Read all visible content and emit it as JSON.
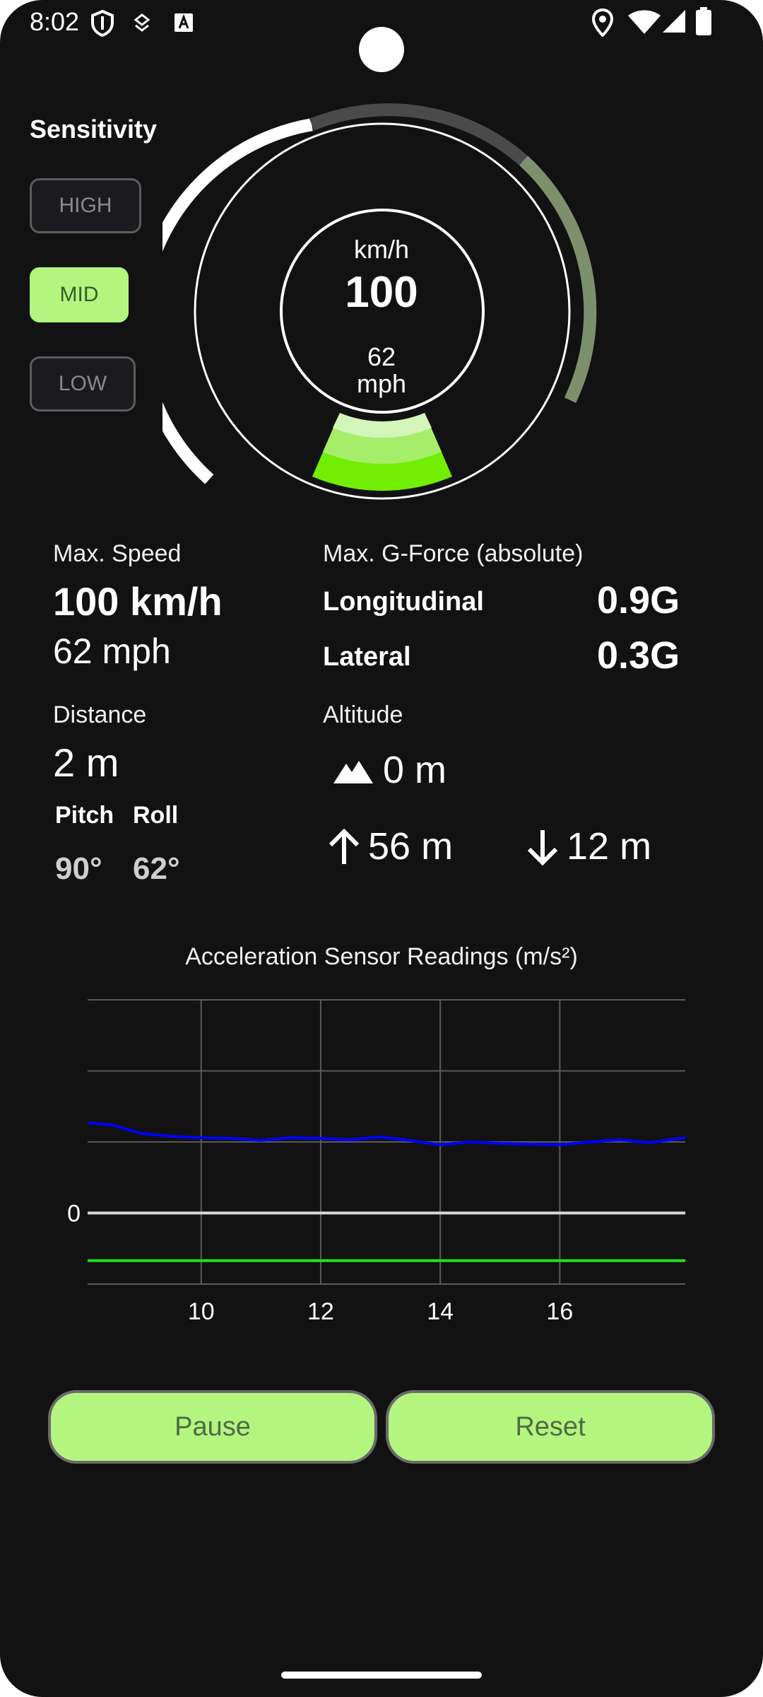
{
  "status_bar": {
    "time": "8:02",
    "icons_left": [
      "shield-icon",
      "data-saver-icon",
      "keyboard-a-icon"
    ],
    "icons_right": [
      "location-icon",
      "wifi-icon",
      "signal-icon",
      "battery-icon"
    ]
  },
  "sensitivity": {
    "title": "Sensitivity",
    "options": [
      "HIGH",
      "MID",
      "LOW"
    ],
    "selected": "MID",
    "accent_color": "#b3f57f"
  },
  "gauge": {
    "unit_kmh": "km/h",
    "value_kmh": "100",
    "value_mph": "62",
    "unit_mph": "mph",
    "level": 0.85
  },
  "stats": {
    "max_speed_label": "Max. Speed",
    "max_speed_kmh": "100 km/h",
    "max_speed_mph": "62 mph",
    "gforce_label": "Max. G-Force (absolute)",
    "longitudinal_label": "Longitudinal",
    "longitudinal_value": "0.9G",
    "lateral_label": "Lateral",
    "lateral_value": "0.3G",
    "distance_label": "Distance",
    "distance_value": "2 m",
    "pitch_label": "Pitch",
    "pitch_value": "90°",
    "roll_label": "Roll",
    "roll_value": "62°",
    "altitude_label": "Altitude",
    "altitude_value": "0 m",
    "altitude_up": "56 m",
    "altitude_down": "12 m"
  },
  "chart_title": "Acceleration Sensor Readings (m/s²)",
  "chart_data": {
    "type": "line",
    "title": "Acceleration Sensor Readings (m/s²)",
    "xlabel": "",
    "ylabel": "",
    "x_ticks": [
      10,
      12,
      14,
      16
    ],
    "y_ticks": [
      0
    ],
    "xlim": [
      8.1,
      18.1
    ],
    "ylim": [
      -1,
      3
    ],
    "grid": true,
    "series": [
      {
        "color": "#0000ff",
        "x": [
          8.1,
          8.5,
          9.0,
          9.5,
          10.0,
          10.5,
          11.0,
          11.5,
          12.0,
          12.5,
          13.0,
          13.5,
          14.0,
          14.5,
          15.0,
          15.5,
          16.0,
          16.5,
          17.0,
          17.5,
          18.1
        ],
        "values": [
          1.27,
          1.24,
          1.12,
          1.08,
          1.06,
          1.05,
          1.02,
          1.06,
          1.05,
          1.03,
          1.07,
          1.02,
          0.96,
          1.0,
          0.98,
          0.97,
          0.96,
          1.0,
          1.03,
          0.99,
          1.06
        ]
      },
      {
        "color": "#d9d9d9",
        "x": [
          8.1,
          18.1
        ],
        "values": [
          0,
          0
        ]
      },
      {
        "color": "#22dd22",
        "x": [
          8.1,
          18.1
        ],
        "values": [
          -0.67,
          -0.67
        ]
      }
    ]
  },
  "buttons": {
    "pause_label": "Pause",
    "reset_label": "Reset"
  }
}
